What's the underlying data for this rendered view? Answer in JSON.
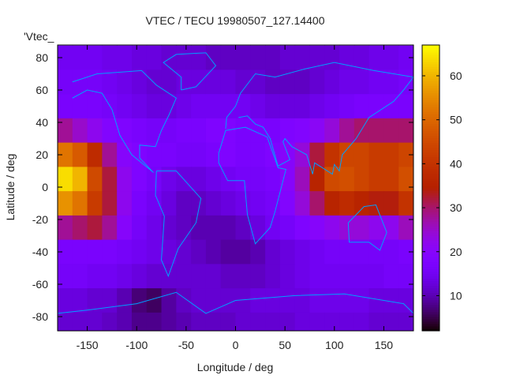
{
  "chart_data": {
    "type": "heatmap",
    "title": "VTEC / TECU 19980507_127.14400",
    "xlabel": "Longitude / deg",
    "ylabel": "Latitude / deg",
    "legend_label": "'Vtec_",
    "legend_placement": "top-left",
    "xlim": [
      -180,
      180
    ],
    "ylim": [
      -88,
      88
    ],
    "xticks": [
      -150,
      -100,
      -50,
      0,
      50,
      100,
      150
    ],
    "yticks": [
      -80,
      -60,
      -40,
      -20,
      0,
      20,
      40,
      60,
      80
    ],
    "colorbar": {
      "range": [
        2,
        67
      ],
      "ticks": [
        10,
        20,
        30,
        40,
        50,
        60
      ]
    },
    "grid": false,
    "cell_lon_step": 15,
    "cell_lat_step": 15,
    "lon_centers": [
      -172.5,
      -157.5,
      -142.5,
      -127.5,
      -112.5,
      -97.5,
      -82.5,
      -67.5,
      -52.5,
      -37.5,
      -22.5,
      -7.5,
      7.5,
      22.5,
      37.5,
      52.5,
      67.5,
      82.5,
      97.5,
      112.5,
      127.5,
      142.5,
      157.5,
      172.5
    ],
    "lat_centers": [
      80,
      65,
      50,
      35,
      20,
      5,
      -10,
      -25,
      -40,
      -55,
      -70,
      -85
    ],
    "values": [
      [
        15,
        15,
        15,
        14,
        14,
        13,
        13,
        12,
        12,
        12,
        11,
        11,
        11,
        11,
        11,
        12,
        12,
        12,
        12,
        13,
        13,
        14,
        14,
        15
      ],
      [
        16,
        16,
        16,
        15,
        14,
        13,
        12,
        12,
        13,
        13,
        13,
        13,
        12,
        12,
        11,
        11,
        11,
        12,
        13,
        14,
        14,
        15,
        15,
        16
      ],
      [
        17,
        17,
        17,
        16,
        15,
        14,
        13,
        13,
        14,
        15,
        15,
        15,
        15,
        14,
        13,
        13,
        13,
        14,
        15,
        16,
        17,
        17,
        17,
        17
      ],
      [
        28,
        25,
        22,
        19,
        18,
        17,
        16,
        16,
        17,
        17,
        18,
        18,
        17,
        17,
        17,
        18,
        19,
        21,
        24,
        28,
        30,
        30,
        30,
        30
      ],
      [
        52,
        48,
        38,
        28,
        20,
        18,
        17,
        17,
        16,
        16,
        17,
        18,
        17,
        17,
        18,
        20,
        24,
        32,
        40,
        44,
        44,
        42,
        42,
        44
      ],
      [
        64,
        60,
        45,
        32,
        22,
        18,
        16,
        14,
        13,
        13,
        14,
        15,
        16,
        16,
        17,
        20,
        26,
        36,
        45,
        46,
        44,
        42,
        42,
        46
      ],
      [
        56,
        52,
        42,
        32,
        22,
        17,
        15,
        13,
        11,
        11,
        12,
        13,
        14,
        15,
        16,
        19,
        24,
        30,
        36,
        38,
        36,
        34,
        34,
        40
      ],
      [
        28,
        30,
        32,
        28,
        20,
        16,
        14,
        12,
        11,
        10,
        10,
        10,
        11,
        13,
        15,
        16,
        18,
        20,
        22,
        24,
        24,
        22,
        22,
        26
      ],
      [
        17,
        17,
        17,
        17,
        16,
        15,
        14,
        13,
        12,
        11,
        10,
        9,
        9,
        10,
        12,
        13,
        14,
        15,
        16,
        16,
        16,
        16,
        16,
        17
      ],
      [
        16,
        16,
        15,
        15,
        14,
        13,
        12,
        12,
        12,
        12,
        12,
        11,
        11,
        11,
        12,
        13,
        14,
        15,
        15,
        15,
        15,
        15,
        16,
        16
      ],
      [
        13,
        13,
        12,
        12,
        10,
        7,
        6,
        9,
        11,
        12,
        12,
        12,
        12,
        13,
        13,
        13,
        13,
        14,
        14,
        14,
        14,
        13,
        13,
        13
      ],
      [
        12,
        12,
        12,
        11,
        10,
        8,
        8,
        9,
        10,
        11,
        11,
        11,
        12,
        12,
        12,
        12,
        13,
        13,
        13,
        13,
        13,
        12,
        12,
        12
      ]
    ],
    "coastline_color": "#00a0ff",
    "coastlines": [
      [
        [
          -17,
          21
        ],
        [
          -10,
          35
        ],
        [
          10,
          37
        ],
        [
          32,
          31
        ],
        [
          43,
          12
        ],
        [
          51,
          11
        ],
        [
          40,
          -15
        ],
        [
          35,
          -25
        ],
        [
          20,
          -35
        ],
        [
          12,
          -17
        ],
        [
          9,
          4
        ],
        [
          -8,
          4
        ],
        [
          -17,
          15
        ],
        [
          -17,
          21
        ]
      ],
      [
        [
          -80,
          10
        ],
        [
          -60,
          10
        ],
        [
          -35,
          -7
        ],
        [
          -40,
          -22
        ],
        [
          -58,
          -38
        ],
        [
          -68,
          -55
        ],
        [
          -75,
          -45
        ],
        [
          -72,
          -18
        ],
        [
          -81,
          -5
        ],
        [
          -80,
          10
        ]
      ],
      [
        [
          -165,
          65
        ],
        [
          -140,
          70
        ],
        [
          -95,
          72
        ],
        [
          -80,
          63
        ],
        [
          -60,
          55
        ],
        [
          -67,
          45
        ],
        [
          -75,
          35
        ],
        [
          -81,
          25
        ],
        [
          -97,
          26
        ],
        [
          -97,
          18
        ],
        [
          -83,
          9
        ],
        [
          -105,
          20
        ],
        [
          -117,
          32
        ],
        [
          -125,
          48
        ],
        [
          -135,
          58
        ],
        [
          -150,
          60
        ],
        [
          -165,
          55
        ]
      ],
      [
        [
          -55,
          60
        ],
        [
          -40,
          62
        ],
        [
          -20,
          75
        ],
        [
          -30,
          83
        ],
        [
          -60,
          82
        ],
        [
          -73,
          77
        ],
        [
          -55,
          68
        ],
        [
          -55,
          60
        ]
      ],
      [
        [
          -10,
          36
        ],
        [
          -9,
          43
        ],
        [
          0,
          50
        ],
        [
          5,
          58
        ],
        [
          20,
          70
        ],
        [
          40,
          68
        ],
        [
          70,
          73
        ],
        [
          100,
          77
        ],
        [
          140,
          72
        ],
        [
          180,
          68
        ],
        [
          170,
          60
        ],
        [
          160,
          53
        ],
        [
          135,
          43
        ],
        [
          122,
          30
        ],
        [
          108,
          20
        ],
        [
          105,
          10
        ],
        [
          100,
          14
        ],
        [
          98,
          8
        ],
        [
          80,
          15
        ],
        [
          78,
          8
        ],
        [
          72,
          20
        ],
        [
          57,
          25
        ],
        [
          50,
          30
        ],
        [
          48,
          28
        ],
        [
          55,
          17
        ],
        [
          43,
          13
        ],
        [
          35,
          30
        ],
        [
          28,
          37
        ],
        [
          20,
          39
        ],
        [
          12,
          44
        ],
        [
          3,
          43
        ]
      ],
      [
        [
          114,
          -22
        ],
        [
          130,
          -12
        ],
        [
          142,
          -11
        ],
        [
          153,
          -28
        ],
        [
          146,
          -39
        ],
        [
          135,
          -34
        ],
        [
          115,
          -34
        ],
        [
          114,
          -22
        ]
      ],
      [
        [
          -180,
          -78
        ],
        [
          -150,
          -76
        ],
        [
          -100,
          -72
        ],
        [
          -60,
          -65
        ],
        [
          -30,
          -78
        ],
        [
          0,
          -70
        ],
        [
          60,
          -67
        ],
        [
          110,
          -66
        ],
        [
          170,
          -72
        ],
        [
          180,
          -78
        ]
      ]
    ]
  }
}
